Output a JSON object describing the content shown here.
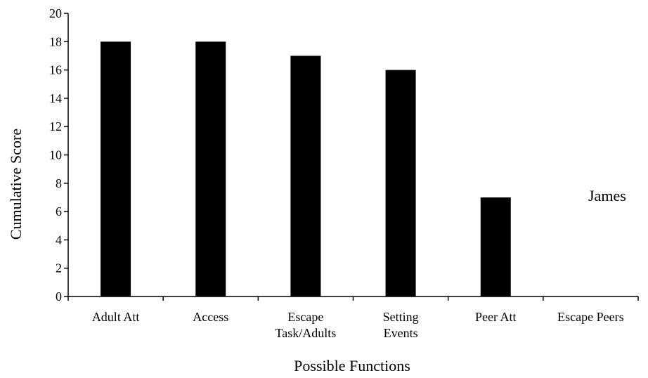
{
  "chart_data": {
    "type": "bar",
    "categories": [
      [
        "Adult Att"
      ],
      [
        "Access"
      ],
      [
        "Escape",
        "Task/Adults"
      ],
      [
        "Setting",
        "Events"
      ],
      [
        "Peer Att"
      ],
      [
        "Escape Peers"
      ]
    ],
    "values": [
      18,
      18,
      17,
      16,
      7,
      0
    ],
    "xlabel": "Possible Functions",
    "ylabel": "Cumulative Score",
    "ylim": [
      0,
      20
    ],
    "yticks": [
      0,
      2,
      4,
      6,
      8,
      10,
      12,
      14,
      16,
      18,
      20
    ],
    "annotation": "James",
    "bar_color": "#000000",
    "grid": false,
    "legend": "none"
  }
}
